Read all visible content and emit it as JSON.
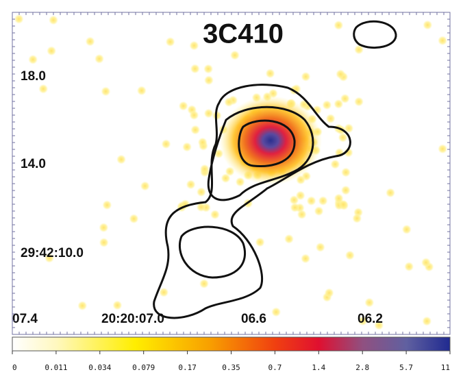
{
  "title": "3C410",
  "y_tick_labels": [
    "18.0",
    "14.0",
    "29:42:10.0"
  ],
  "x_tick_labels": [
    "07.4",
    "20:20:07.0",
    "06.6",
    "06.2"
  ],
  "colorbar": {
    "ticks": [
      0,
      0.011,
      0.034,
      0.079,
      0.17,
      0.35,
      0.7,
      1.4,
      2.8,
      5.7,
      11
    ]
  }
}
